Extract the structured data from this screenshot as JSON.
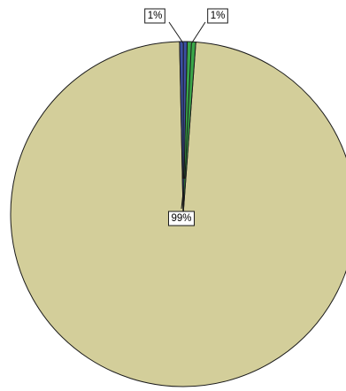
{
  "chart_data": {
    "type": "pie",
    "title": "",
    "slices": [
      {
        "label": "1%",
        "value": 0.7,
        "color": "#3b4fa0"
      },
      {
        "label": "1%",
        "value": 0.8,
        "color": "#3aa648"
      },
      {
        "label": "99%",
        "value": 98.5,
        "color": "#d3ce9a"
      }
    ]
  }
}
